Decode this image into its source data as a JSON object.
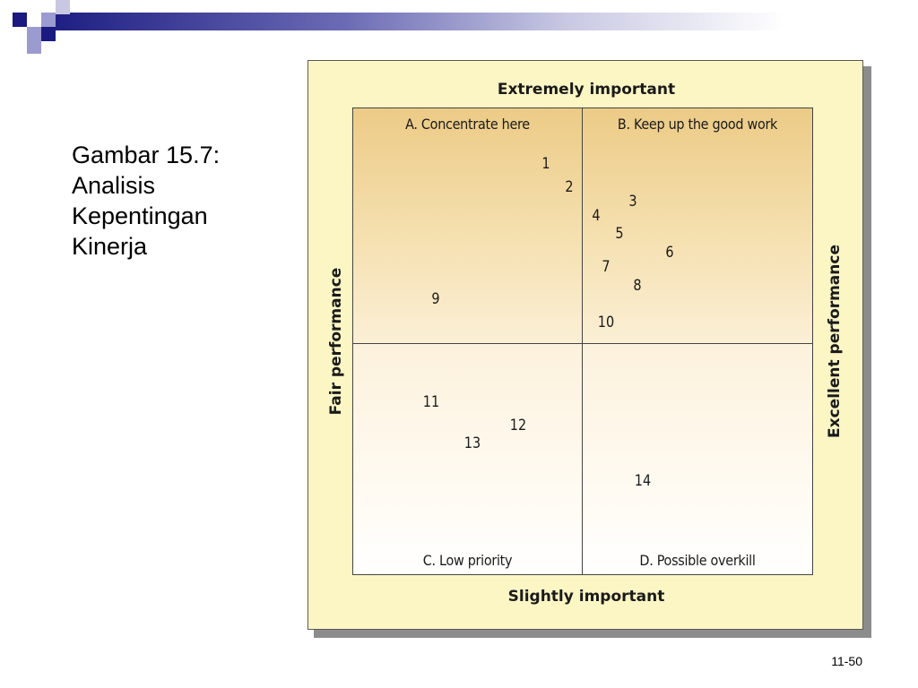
{
  "slide": {
    "caption_lines": [
      "Gambar 15.7:",
      "Analisis",
      "Kepentingan",
      "Kinerja"
    ],
    "page_number": "11-50"
  },
  "diagram": {
    "top_label": "Extremely important",
    "bottom_label": "Slightly important",
    "left_label": "Fair performance",
    "right_label": "Excellent performance",
    "quadrants": {
      "a": "A. Concentrate here",
      "b": "B. Keep up the good work",
      "c": "C. Low priority",
      "d": "D. Possible overkill"
    },
    "points": [
      {
        "label": "1",
        "performance": 0.42,
        "importance": 0.88
      },
      {
        "label": "2",
        "performance": 0.47,
        "importance": 0.83
      },
      {
        "label": "3",
        "performance": 0.61,
        "importance": 0.8
      },
      {
        "label": "4",
        "performance": 0.53,
        "importance": 0.77
      },
      {
        "label": "5",
        "performance": 0.58,
        "importance": 0.73
      },
      {
        "label": "6",
        "performance": 0.69,
        "importance": 0.69
      },
      {
        "label": "7",
        "performance": 0.55,
        "importance": 0.66
      },
      {
        "label": "8",
        "performance": 0.62,
        "importance": 0.62
      },
      {
        "label": "9",
        "performance": 0.18,
        "importance": 0.59
      },
      {
        "label": "10",
        "performance": 0.55,
        "importance": 0.54
      },
      {
        "label": "11",
        "performance": 0.17,
        "importance": 0.37
      },
      {
        "label": "12",
        "performance": 0.36,
        "importance": 0.32
      },
      {
        "label": "13",
        "performance": 0.26,
        "importance": 0.28
      },
      {
        "label": "14",
        "performance": 0.63,
        "importance": 0.2
      }
    ]
  },
  "colors": {
    "header_dark": "#1a1a80",
    "figure_background": "#fcf6c4",
    "top_quadrant_tone": "#eccb86"
  }
}
